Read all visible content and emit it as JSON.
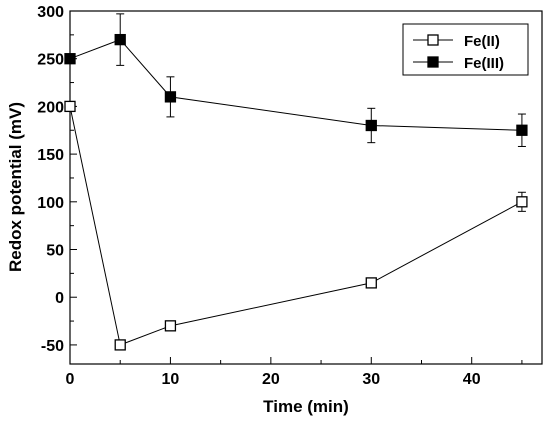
{
  "chart_data": {
    "type": "line",
    "xlabel": "Time (min)",
    "ylabel": "Redox potential (mV)",
    "xlim": [
      0,
      47
    ],
    "ylim": [
      -70,
      300
    ],
    "x_ticks": [
      "0",
      "10",
      "20",
      "30",
      "40"
    ],
    "y_ticks": [
      "-50",
      "0",
      "50",
      "100",
      "150",
      "200",
      "250",
      "300"
    ],
    "legend_position": "top-right",
    "x": [
      0,
      5,
      10,
      30,
      45
    ],
    "series": [
      {
        "name": "Fe(II)",
        "marker": "open-square",
        "color": "#000000",
        "values": [
          200,
          -50,
          -30,
          15,
          100
        ],
        "error": [
          0,
          3,
          4,
          4,
          10
        ]
      },
      {
        "name": "Fe(III)",
        "marker": "filled-square",
        "color": "#000000",
        "values": [
          250,
          270,
          210,
          180,
          175
        ],
        "error": [
          0,
          27,
          21,
          18,
          17
        ]
      }
    ]
  }
}
